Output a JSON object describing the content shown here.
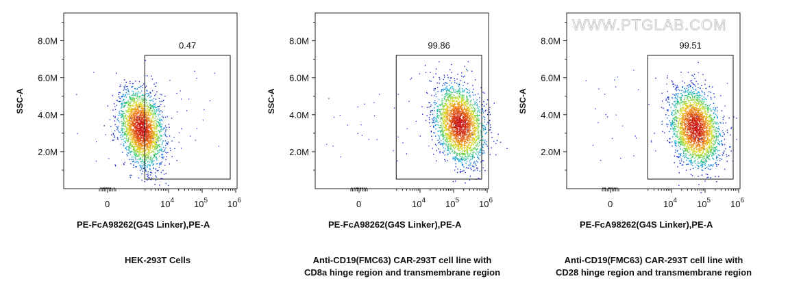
{
  "watermark": "WWW.PTGLAB.COM",
  "chart_data": [
    {
      "type": "scatter",
      "title": "",
      "caption_lines": [
        "HEK-293T Cells"
      ],
      "xlabel": "PE-FcA98262(G4S Linker),PE-A",
      "ylabel": "SSC-A",
      "x_scale": "biexponential",
      "y_ticks": [
        "2.0M",
        "4.0M",
        "6.0M",
        "8.0M"
      ],
      "x_ticks": [
        "0",
        "10^4",
        "10^5",
        "10^6"
      ],
      "gate": {
        "label": "0.47",
        "x_range": [
          5000,
          1500000
        ],
        "y_range": [
          500000,
          7300000
        ]
      },
      "population": {
        "x_center": 1500,
        "y_center": 3300000
      }
    },
    {
      "type": "scatter",
      "title": "",
      "caption_lines": [
        "Anti-CD19(FMC63) CAR-293T cell line with",
        "CD8a hinge region and transmembrane region"
      ],
      "xlabel": "PE-FcA98262(G4S Linker),PE-A",
      "ylabel": "SSC-A",
      "x_scale": "biexponential",
      "y_ticks": [
        "2.0M",
        "4.0M",
        "6.0M",
        "8.0M"
      ],
      "x_ticks": [
        "0",
        "10^4",
        "10^5",
        "10^6"
      ],
      "gate": {
        "label": "99.86",
        "x_range": [
          5000,
          1500000
        ],
        "y_range": [
          500000,
          7300000
        ]
      },
      "population": {
        "x_center": 150000,
        "y_center": 3500000
      }
    },
    {
      "type": "scatter",
      "title": "",
      "caption_lines": [
        "Anti-CD19(FMC63) CAR-293T cell line with",
        "CD28 hinge region and transmembrane region"
      ],
      "xlabel": "PE-FcA98262(G4S Linker),PE-A",
      "ylabel": "SSC-A",
      "x_scale": "biexponential",
      "y_ticks": [
        "2.0M",
        "4.0M",
        "6.0M",
        "8.0M"
      ],
      "x_ticks": [
        "0",
        "10^4",
        "10^5",
        "10^6"
      ],
      "gate": {
        "label": "99.51",
        "x_range": [
          5000,
          1500000
        ],
        "y_range": [
          500000,
          7300000
        ]
      },
      "population": {
        "x_center": 50000,
        "y_center": 3300000
      }
    }
  ]
}
